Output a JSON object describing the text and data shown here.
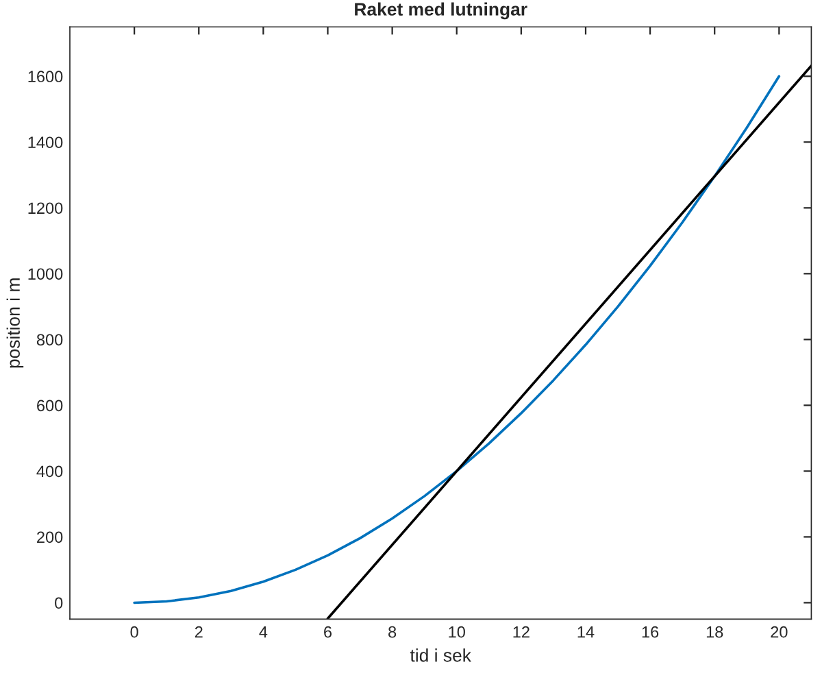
{
  "chart_data": {
    "type": "line",
    "title": "Raket med lutningar",
    "xlabel": "tid i sek",
    "ylabel": "position i m",
    "xlim": [
      -2,
      21
    ],
    "xticks": [
      0,
      2,
      4,
      6,
      8,
      10,
      12,
      14,
      16,
      18,
      20
    ],
    "ylim": [
      -50,
      1750
    ],
    "yticks": [
      0,
      200,
      400,
      600,
      800,
      1000,
      1200,
      1400,
      1600
    ],
    "grid": false,
    "series": [
      {
        "color": "#0072bd",
        "x": [
          0,
          1,
          2,
          3,
          4,
          5,
          6,
          7,
          8,
          9,
          10,
          11,
          12,
          13,
          14,
          15,
          16,
          17,
          18,
          19,
          20
        ],
        "values": [
          0,
          4,
          16,
          36,
          64,
          100,
          144,
          196,
          256,
          324,
          400,
          484,
          576,
          676,
          784,
          900,
          1024,
          1156,
          1296,
          1444,
          1600
        ]
      },
      {
        "color": "#000000",
        "x": [
          6,
          21
        ],
        "values": [
          -48,
          1632
        ]
      }
    ]
  }
}
